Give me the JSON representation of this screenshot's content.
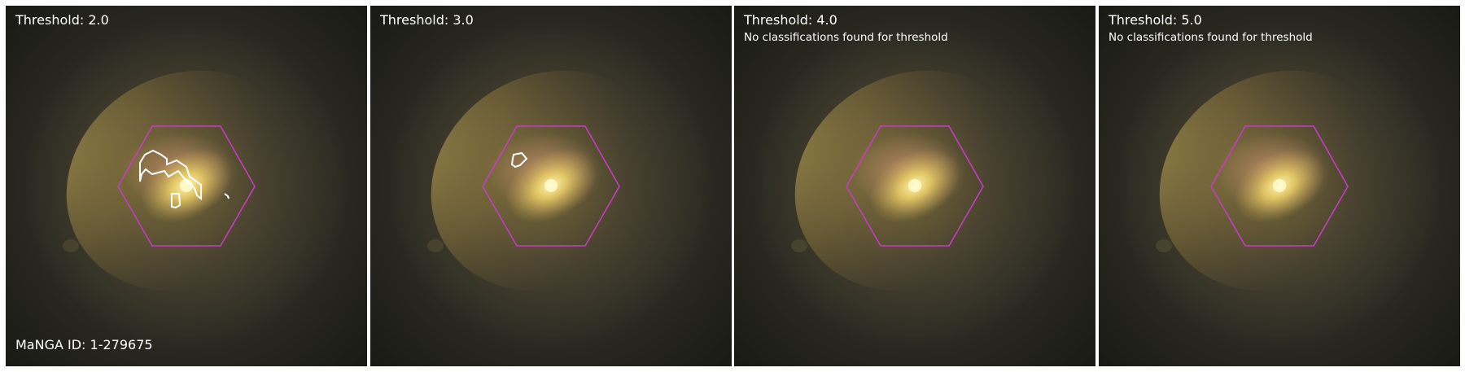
{
  "panels": [
    {
      "title": "Threshold: 2.0",
      "note": ""
    },
    {
      "title": "Threshold: 3.0",
      "note": ""
    },
    {
      "title": "Threshold: 4.0",
      "note": "No classifications found for threshold"
    },
    {
      "title": "Threshold: 5.0",
      "note": "No classifications found for threshold"
    }
  ],
  "manga_id": "MaNGA ID: 1-279675",
  "colors": {
    "hexagon": "#c83cc8",
    "contour": "#ffffff",
    "sky": "#2b2a22",
    "galaxy_core": "#fff2a0"
  }
}
